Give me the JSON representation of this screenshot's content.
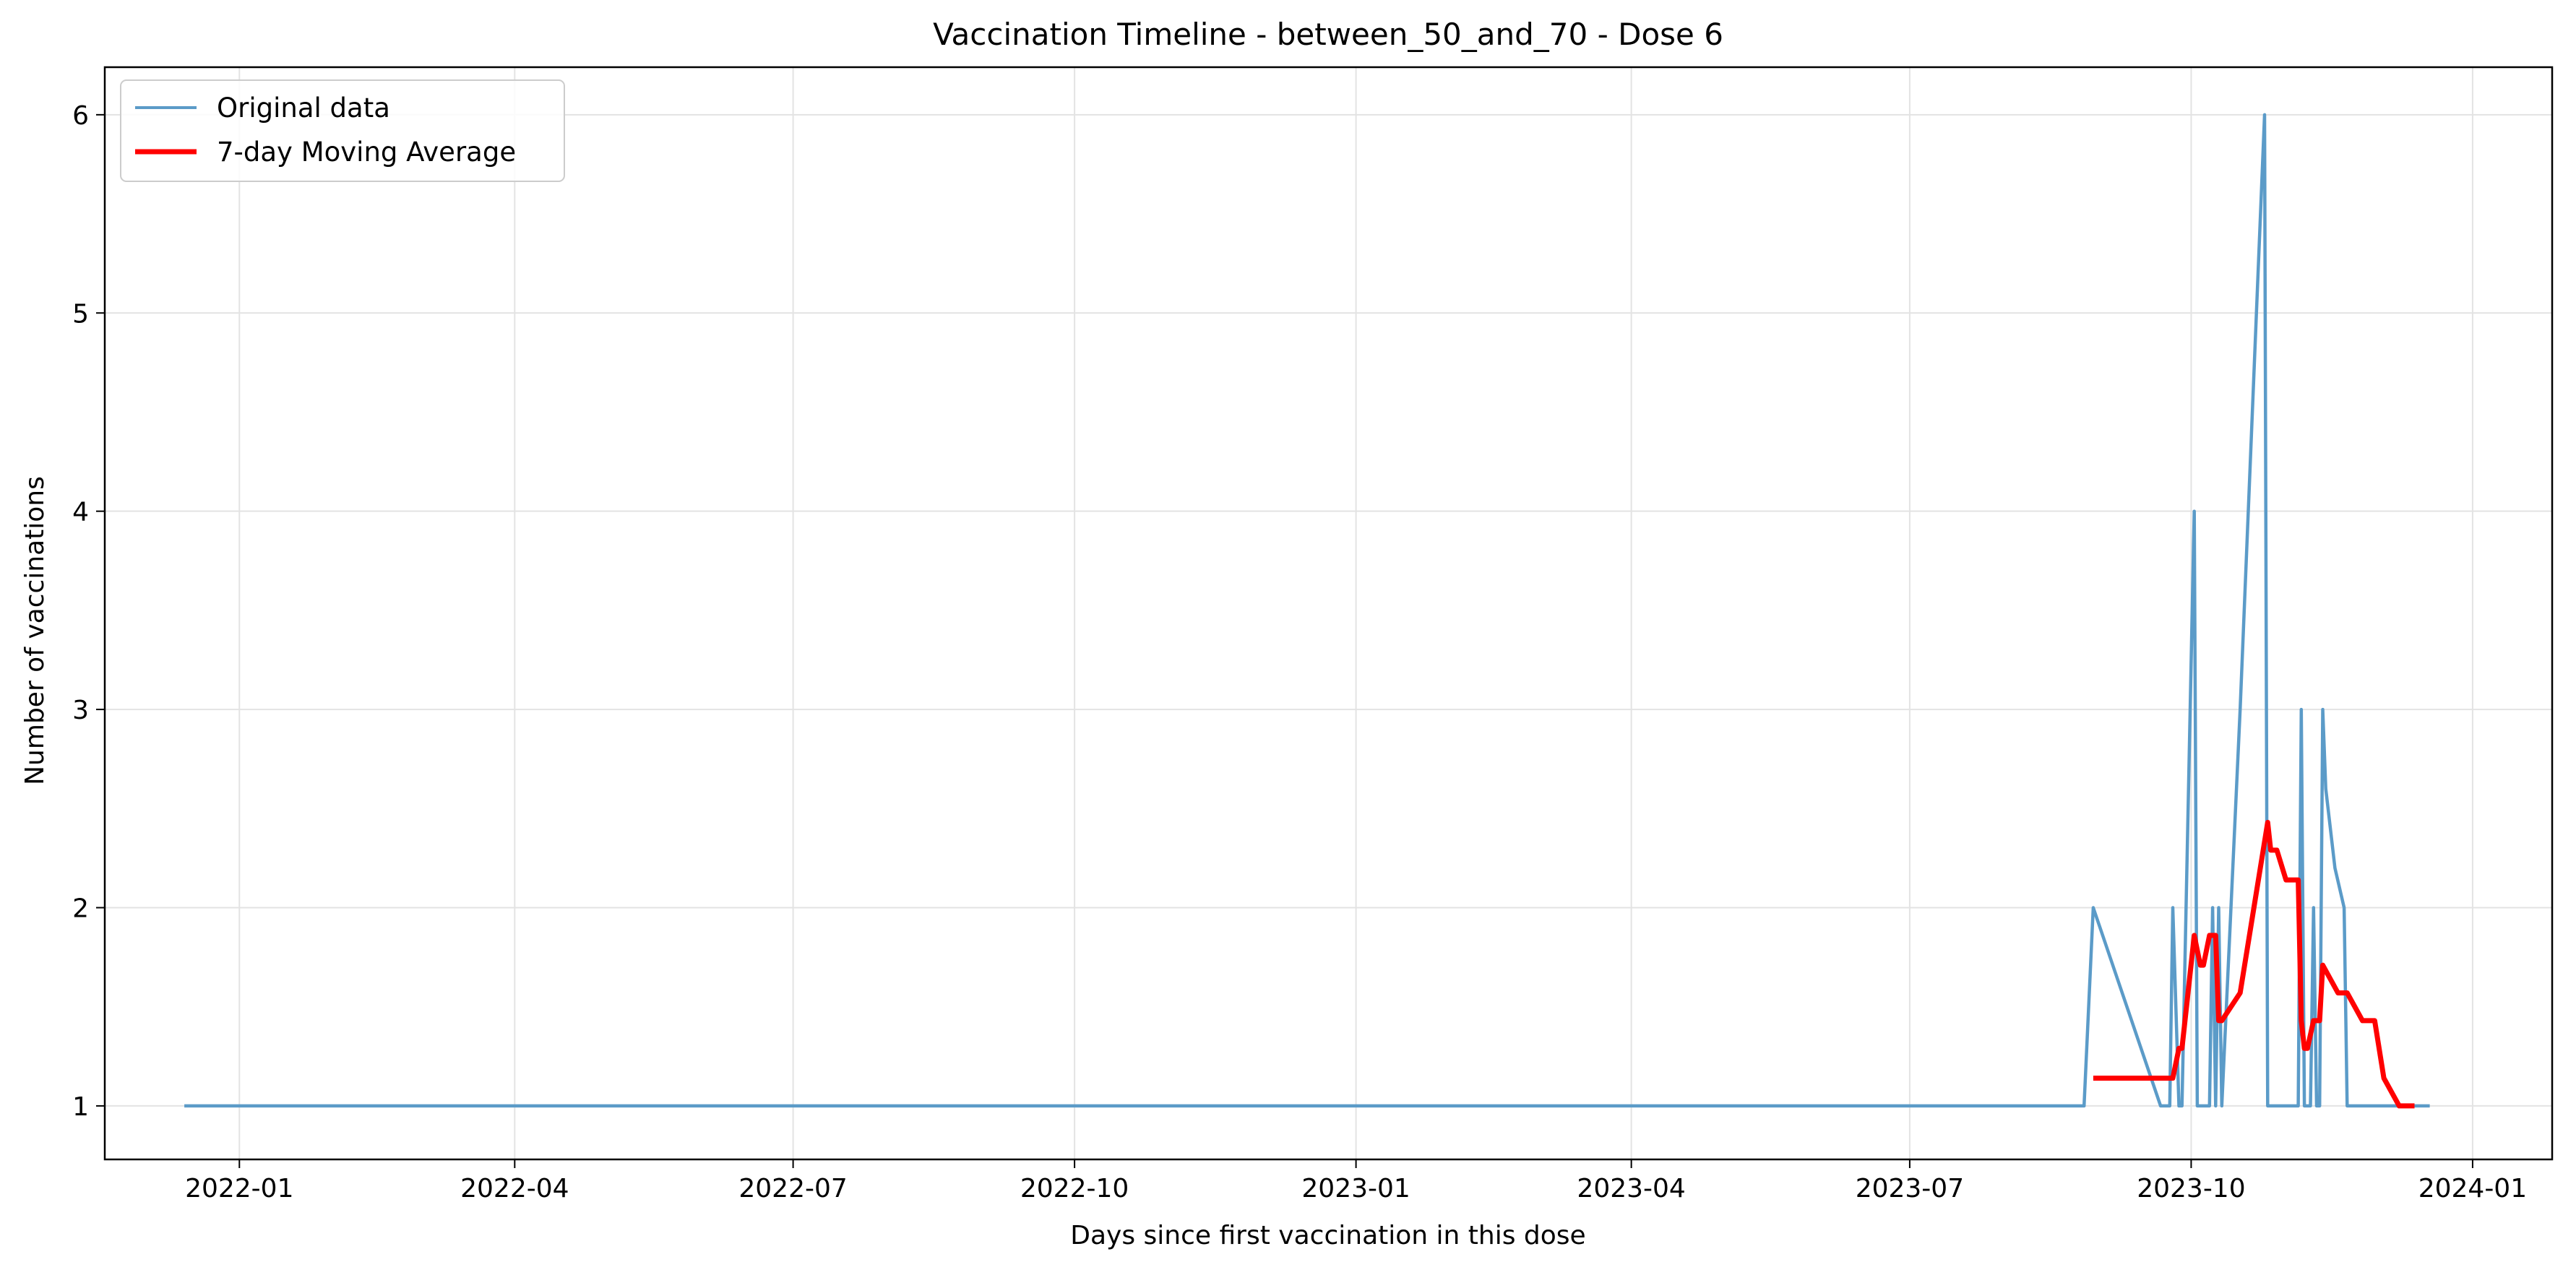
{
  "chart_data": {
    "type": "line",
    "title": "Vaccination Timeline - between_50_and_70 - Dose 6",
    "xlabel": "Days since first vaccination in this dose",
    "ylabel": "Number of vaccinations",
    "xlim": [
      "2021-11-18",
      "2024-01-27"
    ],
    "ylim": [
      0.73,
      6.24
    ],
    "x_ticks": [
      "2022-01-01",
      "2022-04-01",
      "2022-07-01",
      "2022-10-01",
      "2023-01-01",
      "2023-04-01",
      "2023-07-01",
      "2023-10-01",
      "2024-01-01"
    ],
    "x_tick_labels": [
      "2022-01",
      "2022-04",
      "2022-07",
      "2022-10",
      "2023-01",
      "2023-04",
      "2023-07",
      "2023-10",
      "2024-01"
    ],
    "y_ticks": [
      1,
      2,
      3,
      4,
      5,
      6
    ],
    "y_tick_labels": [
      "1",
      "2",
      "3",
      "4",
      "5",
      "6"
    ],
    "grid": true,
    "legend_position": "upper-left",
    "series": [
      {
        "name": "Original data",
        "color": "#5b9bc8",
        "x": [
          "2021-12-14",
          "2023-08-27",
          "2023-08-30",
          "2023-09-21",
          "2023-09-24",
          "2023-09-25",
          "2023-09-27",
          "2023-09-28",
          "2023-10-02",
          "2023-10-03",
          "2023-10-06",
          "2023-10-07",
          "2023-10-08",
          "2023-10-09",
          "2023-10-10",
          "2023-10-11",
          "2023-10-17",
          "2023-10-25",
          "2023-10-26",
          "2023-10-29",
          "2023-11-04",
          "2023-11-05",
          "2023-11-06",
          "2023-11-07",
          "2023-11-08",
          "2023-11-09",
          "2023-11-10",
          "2023-11-11",
          "2023-11-12",
          "2023-11-13",
          "2023-11-14",
          "2023-11-17",
          "2023-11-20",
          "2023-11-21",
          "2023-12-18"
        ],
        "y": [
          1,
          1,
          2,
          1,
          1,
          2,
          1,
          1,
          4,
          1,
          1,
          1,
          2,
          1,
          2,
          1,
          3,
          6,
          1,
          1,
          1,
          1,
          3,
          1,
          1,
          1,
          2,
          1,
          1,
          3,
          2.6,
          2.2,
          2,
          1,
          1
        ]
      },
      {
        "name": "7-day Moving Average",
        "color": "#ff0000",
        "x": [
          "2023-08-30",
          "2023-09-25",
          "2023-09-27",
          "2023-09-28",
          "2023-10-02",
          "2023-10-04",
          "2023-10-05",
          "2023-10-07",
          "2023-10-09",
          "2023-10-10",
          "2023-10-11",
          "2023-10-17",
          "2023-10-26",
          "2023-10-27",
          "2023-10-29",
          "2023-11-01",
          "2023-11-03",
          "2023-11-05",
          "2023-11-06",
          "2023-11-07",
          "2023-11-08",
          "2023-11-10",
          "2023-11-12",
          "2023-11-13",
          "2023-11-18",
          "2023-11-21",
          "2023-11-26",
          "2023-11-30",
          "2023-12-03",
          "2023-12-08",
          "2023-12-09",
          "2023-12-13"
        ],
        "y": [
          1.14,
          1.14,
          1.29,
          1.29,
          1.86,
          1.71,
          1.71,
          1.86,
          1.86,
          1.43,
          1.43,
          1.57,
          2.43,
          2.29,
          2.29,
          2.14,
          2.14,
          2.14,
          1.43,
          1.29,
          1.29,
          1.43,
          1.43,
          1.71,
          1.57,
          1.57,
          1.43,
          1.43,
          1.14,
          1.0,
          1.0,
          1.0
        ]
      }
    ]
  }
}
